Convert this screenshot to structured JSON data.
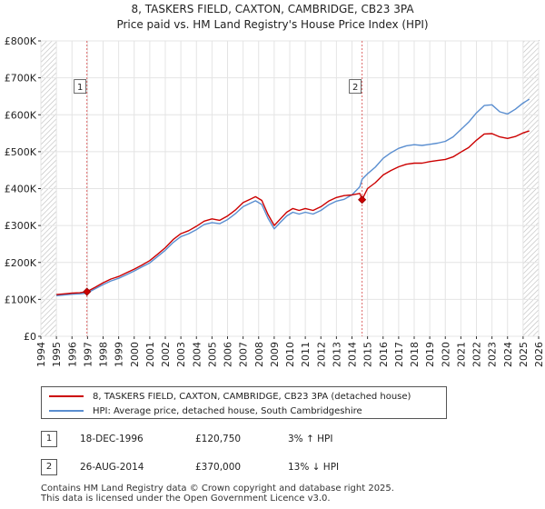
{
  "chart_data": {
    "type": "line",
    "title_line1": "8, TASKERS FIELD, CAXTON, CAMBRIDGE, CB23 3PA",
    "title_line2": "Price paid vs. HM Land Registry's House Price Index (HPI)",
    "x_ticks": [
      "1994",
      "1995",
      "1996",
      "1997",
      "1998",
      "1999",
      "2000",
      "2001",
      "2002",
      "2003",
      "2004",
      "2005",
      "2006",
      "2007",
      "2008",
      "2009",
      "2010",
      "2011",
      "2012",
      "2013",
      "2014",
      "2015",
      "2016",
      "2017",
      "2018",
      "2019",
      "2020",
      "2021",
      "2022",
      "2023",
      "2024",
      "2025",
      "2026"
    ],
    "y_ticks": [
      {
        "value": 0,
        "label": "£0"
      },
      {
        "value": 100000,
        "label": "£100K"
      },
      {
        "value": 200000,
        "label": "£200K"
      },
      {
        "value": 300000,
        "label": "£300K"
      },
      {
        "value": 400000,
        "label": "£400K"
      },
      {
        "value": 500000,
        "label": "£500K"
      },
      {
        "value": 600000,
        "label": "£600K"
      },
      {
        "value": 700000,
        "label": "£700K"
      },
      {
        "value": 800000,
        "label": "£800K"
      }
    ],
    "xlim": [
      1994,
      2026
    ],
    "ylim": [
      0,
      800000
    ],
    "data_start": 1995.0,
    "data_end": 2025.5,
    "hatch_after": 2025.0,
    "grid": true,
    "series": [
      {
        "name": "8, TASKERS FIELD, CAXTON, CAMBRIDGE, CB23 3PA (detached house)",
        "color": "#cc0000",
        "x": [
          1995.0,
          1995.5,
          1996.0,
          1996.5,
          1996.96,
          1997.5,
          1998.0,
          1998.5,
          1999.0,
          1999.5,
          2000.0,
          2000.5,
          2001.0,
          2001.5,
          2002.0,
          2002.5,
          2003.0,
          2003.5,
          2004.0,
          2004.5,
          2005.0,
          2005.5,
          2006.0,
          2006.5,
          2007.0,
          2007.5,
          2007.8,
          2008.2,
          2008.6,
          2009.0,
          2009.4,
          2009.8,
          2010.2,
          2010.6,
          2011.0,
          2011.5,
          2012.0,
          2012.5,
          2013.0,
          2013.5,
          2014.0,
          2014.5,
          2014.65,
          2015.0,
          2015.5,
          2016.0,
          2016.5,
          2017.0,
          2017.5,
          2018.0,
          2018.5,
          2019.0,
          2019.5,
          2020.0,
          2020.5,
          2021.0,
          2021.5,
          2022.0,
          2022.5,
          2023.0,
          2023.5,
          2024.0,
          2024.5,
          2025.0,
          2025.4
        ],
        "y": [
          113000,
          115000,
          117000,
          118000,
          120750,
          133000,
          145000,
          155000,
          162000,
          172000,
          182000,
          193000,
          205000,
          222000,
          240000,
          262000,
          278000,
          286000,
          298000,
          312000,
          318000,
          314000,
          326000,
          342000,
          362000,
          372000,
          378000,
          368000,
          330000,
          300000,
          318000,
          336000,
          346000,
          341000,
          346000,
          341000,
          351000,
          366000,
          376000,
          381000,
          383000,
          387000,
          370000,
          400000,
          416000,
          437000,
          449000,
          459000,
          466000,
          469000,
          469000,
          473000,
          476000,
          479000,
          486000,
          499000,
          511000,
          531000,
          548000,
          549000,
          540000,
          536000,
          541000,
          551000,
          556000
        ]
      },
      {
        "name": "HPI: Average price, detached house, South Cambridgeshire",
        "color": "#5a8ed0",
        "x": [
          1995.0,
          1995.5,
          1996.0,
          1996.5,
          1996.96,
          1997.5,
          1998.0,
          1998.5,
          1999.0,
          1999.5,
          2000.0,
          2000.5,
          2001.0,
          2001.5,
          2002.0,
          2002.5,
          2003.0,
          2003.5,
          2004.0,
          2004.5,
          2005.0,
          2005.5,
          2006.0,
          2006.5,
          2007.0,
          2007.5,
          2007.8,
          2008.2,
          2008.6,
          2009.0,
          2009.4,
          2009.8,
          2010.2,
          2010.6,
          2011.0,
          2011.5,
          2012.0,
          2012.5,
          2013.0,
          2013.5,
          2014.0,
          2014.5,
          2014.65,
          2015.0,
          2015.5,
          2016.0,
          2016.5,
          2017.0,
          2017.5,
          2018.0,
          2018.5,
          2019.0,
          2019.5,
          2020.0,
          2020.5,
          2021.0,
          2021.5,
          2022.0,
          2022.5,
          2023.0,
          2023.5,
          2024.0,
          2024.5,
          2025.0,
          2025.4
        ],
        "y": [
          110000,
          112000,
          114000,
          115000,
          117000,
          129000,
          140000,
          150000,
          157000,
          167000,
          177000,
          188000,
          199000,
          216000,
          233000,
          254000,
          270000,
          278000,
          289000,
          303000,
          308000,
          305000,
          316000,
          332000,
          351000,
          361000,
          367000,
          357000,
          320000,
          291000,
          309000,
          326000,
          336000,
          331000,
          336000,
          331000,
          341000,
          356000,
          366000,
          371000,
          383000,
          405000,
          425000,
          440000,
          458000,
          482000,
          497000,
          509000,
          516000,
          519000,
          517000,
          520000,
          523000,
          528000,
          540000,
          560000,
          580000,
          605000,
          625000,
          627000,
          608000,
          602000,
          615000,
          632000,
          642000
        ]
      }
    ],
    "markers": [
      {
        "label": "1",
        "x": 1996.96,
        "y": 120750
      },
      {
        "label": "2",
        "x": 2014.65,
        "y": 370000
      }
    ],
    "legend": [
      {
        "label": "8, TASKERS FIELD, CAXTON, CAMBRIDGE, CB23 3PA (detached house)",
        "color": "#cc0000"
      },
      {
        "label": "HPI: Average price, detached house, South Cambridgeshire",
        "color": "#5a8ed0"
      }
    ]
  },
  "transactions": [
    {
      "badge": "1",
      "date": "18-DEC-1996",
      "price": "£120,750",
      "hpi": "3% ↑ HPI"
    },
    {
      "badge": "2",
      "date": "26-AUG-2014",
      "price": "£370,000",
      "hpi": "13% ↓ HPI"
    }
  ],
  "footer": {
    "line1": "Contains HM Land Registry data © Crown copyright and database right 2025.",
    "line2": "This data is licensed under the Open Government Licence v3.0."
  }
}
